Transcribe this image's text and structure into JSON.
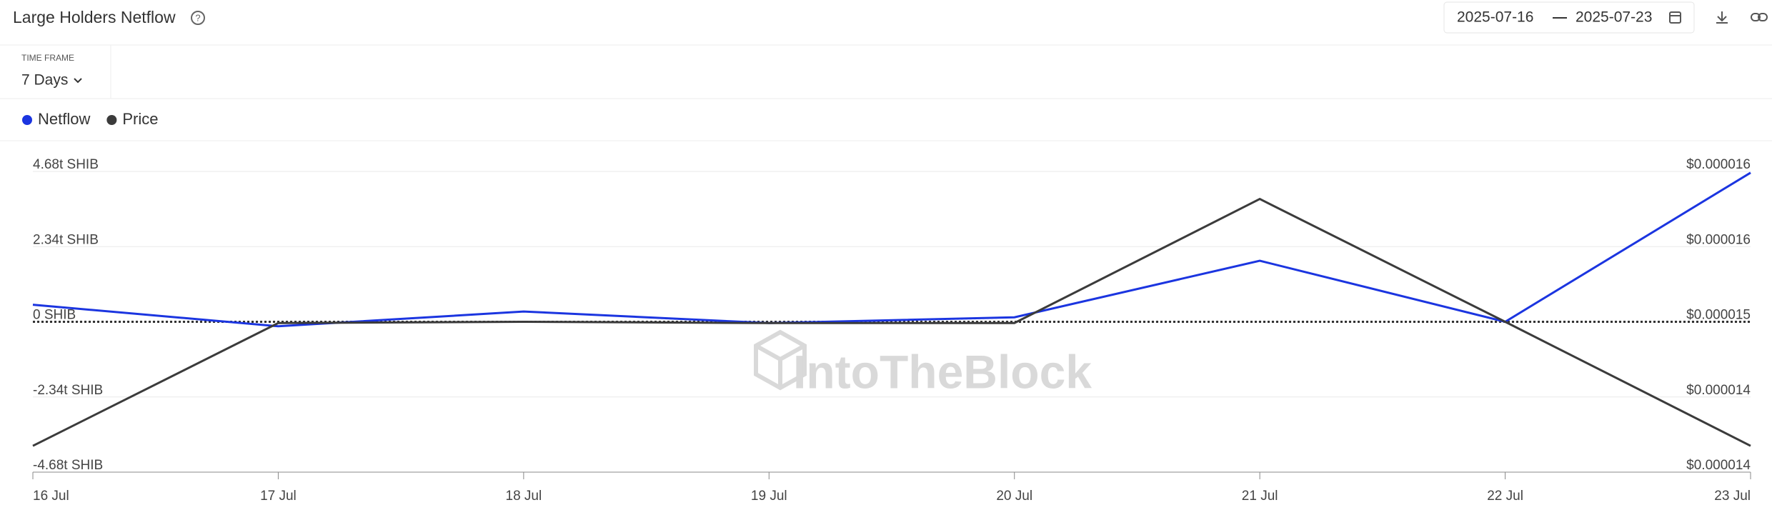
{
  "header": {
    "title": "Large Holders Netflow",
    "date_start": "2025-07-16",
    "date_end": "2025-07-23"
  },
  "time_frame": {
    "label": "TIME FRAME",
    "value": "7 Days"
  },
  "watermark": "IntoTheBlock",
  "chart_data": {
    "type": "line",
    "categories": [
      "16 Jul",
      "17 Jul",
      "18 Jul",
      "19 Jul",
      "20 Jul",
      "21 Jul",
      "22 Jul",
      "23 Jul"
    ],
    "series": [
      {
        "name": "Netflow",
        "color": "#1b35e0",
        "values": [
          0.53,
          -0.14,
          0.32,
          -0.04,
          0.14,
          1.9,
          0,
          4.64
        ]
      },
      {
        "name": "Price",
        "color": "#3b3b3b",
        "axis": "y2",
        "values": [
          1.401e-05,
          1.499e-05,
          1.5e-05,
          1.499e-05,
          1.499e-05,
          1.598e-05,
          1.5e-05,
          1.401e-05
        ]
      }
    ],
    "ylim": [
      -4.68,
      4.68
    ],
    "yticks": [
      {
        "value": 4.68,
        "label": "4.68t SHIB"
      },
      {
        "value": 2.34,
        "label": "2.34t SHIB"
      },
      {
        "value": 0,
        "label": "0 SHIB"
      },
      {
        "value": -2.34,
        "label": "-2.34t SHIB"
      },
      {
        "value": -4.68,
        "label": "-4.68t SHIB"
      }
    ],
    "y2lim": [
      1.38e-05,
      1.62e-05
    ],
    "y2ticks": [
      {
        "value": 1.62e-05,
        "label": "$0.000016"
      },
      {
        "value": 1.56e-05,
        "label": "$0.000016"
      },
      {
        "value": 1.5e-05,
        "label": "$0.000015"
      },
      {
        "value": 1.44e-05,
        "label": "$0.000014"
      },
      {
        "value": 1.38e-05,
        "label": "$0.000014"
      }
    ],
    "grid": true
  }
}
